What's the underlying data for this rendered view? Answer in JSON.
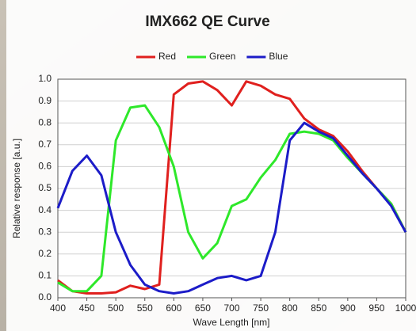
{
  "chart_data": {
    "type": "line",
    "title": "IMX662 QE Curve",
    "x_label": "Wave Length [nm]",
    "y_label": "Relative response [a.u.]",
    "x": [
      400,
      425,
      450,
      475,
      500,
      525,
      550,
      575,
      600,
      625,
      650,
      675,
      700,
      725,
      750,
      775,
      800,
      825,
      850,
      875,
      900,
      925,
      950,
      975,
      1000
    ],
    "series": [
      {
        "name": "Red",
        "color": "#e0201e",
        "values": [
          0.08,
          0.03,
          0.02,
          0.02,
          0.025,
          0.055,
          0.04,
          0.06,
          0.93,
          0.98,
          0.99,
          0.95,
          0.88,
          0.99,
          0.97,
          0.93,
          0.91,
          0.82,
          0.77,
          0.74,
          0.67,
          0.58,
          0.5,
          0.43,
          0.3
        ]
      },
      {
        "name": "Green",
        "color": "#2ee82a",
        "values": [
          0.07,
          0.03,
          0.03,
          0.1,
          0.72,
          0.87,
          0.88,
          0.78,
          0.6,
          0.3,
          0.18,
          0.25,
          0.42,
          0.45,
          0.55,
          0.63,
          0.75,
          0.76,
          0.75,
          0.72,
          0.64,
          0.57,
          0.5,
          0.43,
          0.3
        ]
      },
      {
        "name": "Blue",
        "color": "#1c1cc8",
        "values": [
          0.41,
          0.58,
          0.65,
          0.56,
          0.3,
          0.15,
          0.06,
          0.03,
          0.02,
          0.03,
          0.06,
          0.09,
          0.1,
          0.08,
          0.1,
          0.3,
          0.72,
          0.8,
          0.76,
          0.73,
          0.65,
          0.57,
          0.5,
          0.42,
          0.3
        ]
      }
    ],
    "xlim": [
      400,
      1000
    ],
    "xticks": [
      400,
      450,
      500,
      550,
      600,
      650,
      700,
      750,
      800,
      850,
      900,
      950,
      1000
    ],
    "ylim": [
      0,
      1
    ],
    "yticks": [
      {
        "value": 0,
        "label": "0.0"
      },
      0.1,
      0.2,
      0.3,
      0.4,
      0.5,
      0.6,
      0.7,
      0.8,
      0.9,
      {
        "value": 1,
        "label": "1.0"
      }
    ],
    "grid": true,
    "legend": "top"
  }
}
